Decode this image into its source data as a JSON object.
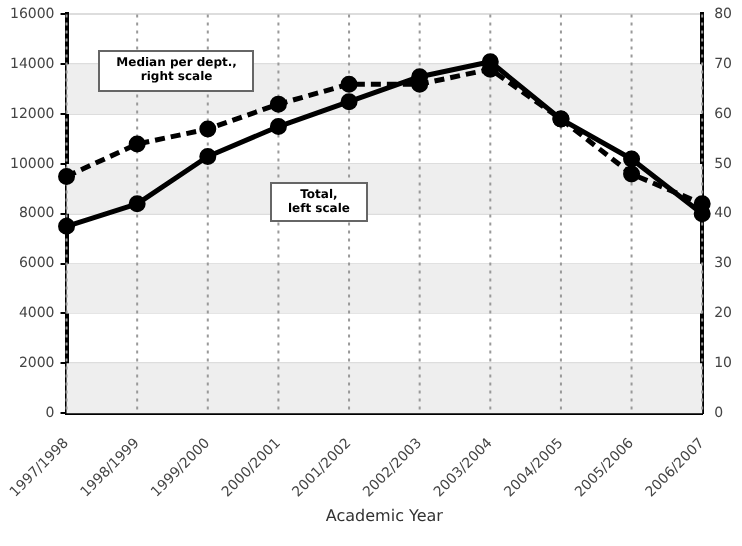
{
  "chart_data": {
    "type": "line",
    "xlabel": "Academic Year",
    "categories": [
      "1997/1998",
      "1998/1999",
      "1999/2000",
      "2000/2001",
      "2001/2002",
      "2002/2003",
      "2003/2004",
      "2004/2005",
      "2005/2006",
      "2006/2007"
    ],
    "series": [
      {
        "color": "#000000",
        "line_style": "solid",
        "values": [
          7500,
          8400,
          10300,
          11500,
          12500,
          13500,
          14100,
          11800,
          10200,
          8000
        ]
      },
      {
        "color": "#000000",
        "line_style": "dashed",
        "axis": "y2",
        "values": [
          47.5,
          54,
          57,
          62,
          66,
          66,
          69,
          59,
          48,
          42
        ]
      }
    ],
    "ylim": [
      0,
      16000
    ],
    "yticks": [
      0,
      2000,
      4000,
      6000,
      8000,
      10000,
      12000,
      14000,
      16000
    ],
    "y2lim": [
      0,
      80
    ],
    "y2ticks": [
      0,
      10,
      20,
      30,
      40,
      50,
      60,
      70,
      80
    ],
    "bands": [
      {
        "axis": "y",
        "from": 0,
        "to": 2000,
        "color": "#eeeeee"
      },
      {
        "axis": "y",
        "from": 4000,
        "to": 6000,
        "color": "#eeeeee"
      },
      {
        "axis": "y",
        "from": 8000,
        "to": 10000,
        "color": "#eeeeee"
      },
      {
        "axis": "y",
        "from": 12000,
        "to": 14000,
        "color": "#eeeeee"
      }
    ],
    "grid": true,
    "marker": "circle",
    "legend": false,
    "annotations": [
      "Median per dept.,\nright scale",
      "Total,\nleft scale"
    ]
  }
}
